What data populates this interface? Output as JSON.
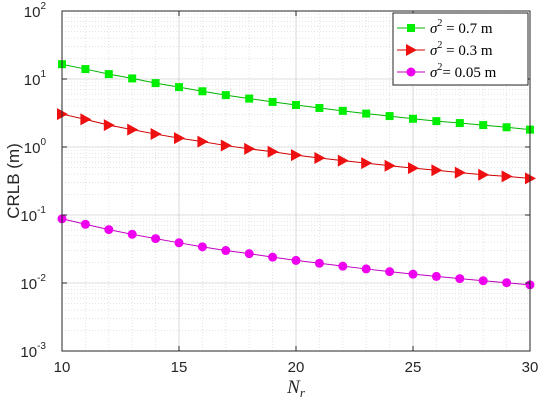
{
  "chart_data": {
    "type": "line",
    "xlabel_main": "N",
    "xlabel_sub": "r",
    "ylabel": "CRLB (m)",
    "xlim": [
      10,
      30
    ],
    "ylim": [
      0.001,
      100
    ],
    "yscale": "log",
    "grid": true,
    "minor_grid": true,
    "legend_position": "top-right",
    "x_ticks": [
      "10",
      "15",
      "20",
      "25",
      "30"
    ],
    "y_ticks": [
      {
        "base": "10",
        "exp": "-3"
      },
      {
        "base": "10",
        "exp": "-2"
      },
      {
        "base": "10",
        "exp": "-1"
      },
      {
        "base": "10",
        "exp": "0"
      },
      {
        "base": "10",
        "exp": "1"
      },
      {
        "base": "10",
        "exp": "2"
      }
    ],
    "x": [
      10,
      11,
      12,
      13,
      14,
      15,
      16,
      17,
      18,
      19,
      20,
      21,
      22,
      23,
      24,
      25,
      26,
      27,
      28,
      29,
      30
    ],
    "series": [
      {
        "legend_symbol": "σ",
        "legend_sup": "2",
        "legend_value": " = 0.7 m",
        "color": "#00ee00",
        "line_color": "#00b400",
        "marker": "square",
        "values": [
          16.5,
          14.0,
          11.8,
          10.2,
          8.7,
          7.6,
          6.6,
          5.8,
          5.15,
          4.6,
          4.15,
          3.75,
          3.4,
          3.1,
          2.85,
          2.6,
          2.4,
          2.25,
          2.1,
          1.95,
          1.8
        ]
      },
      {
        "legend_symbol": "σ",
        "legend_sup": "2",
        "legend_value": " = 0.3 m",
        "color": "#ee1010",
        "line_color": "#d00000",
        "marker": "triangle-right",
        "values": [
          3.05,
          2.55,
          2.1,
          1.8,
          1.55,
          1.35,
          1.2,
          1.05,
          0.94,
          0.85,
          0.76,
          0.69,
          0.63,
          0.58,
          0.53,
          0.49,
          0.455,
          0.42,
          0.39,
          0.37,
          0.345
        ]
      },
      {
        "legend_symbol": "σ",
        "legend_sup": "2",
        "legend_value": "= 0.05 m",
        "color": "#ee00ee",
        "line_color": "#c000c0",
        "marker": "circle",
        "values": [
          0.088,
          0.073,
          0.061,
          0.052,
          0.045,
          0.039,
          0.034,
          0.03,
          0.027,
          0.024,
          0.0215,
          0.0195,
          0.0177,
          0.0161,
          0.0147,
          0.0135,
          0.0125,
          0.0116,
          0.0108,
          0.0101,
          0.0094
        ]
      }
    ]
  }
}
